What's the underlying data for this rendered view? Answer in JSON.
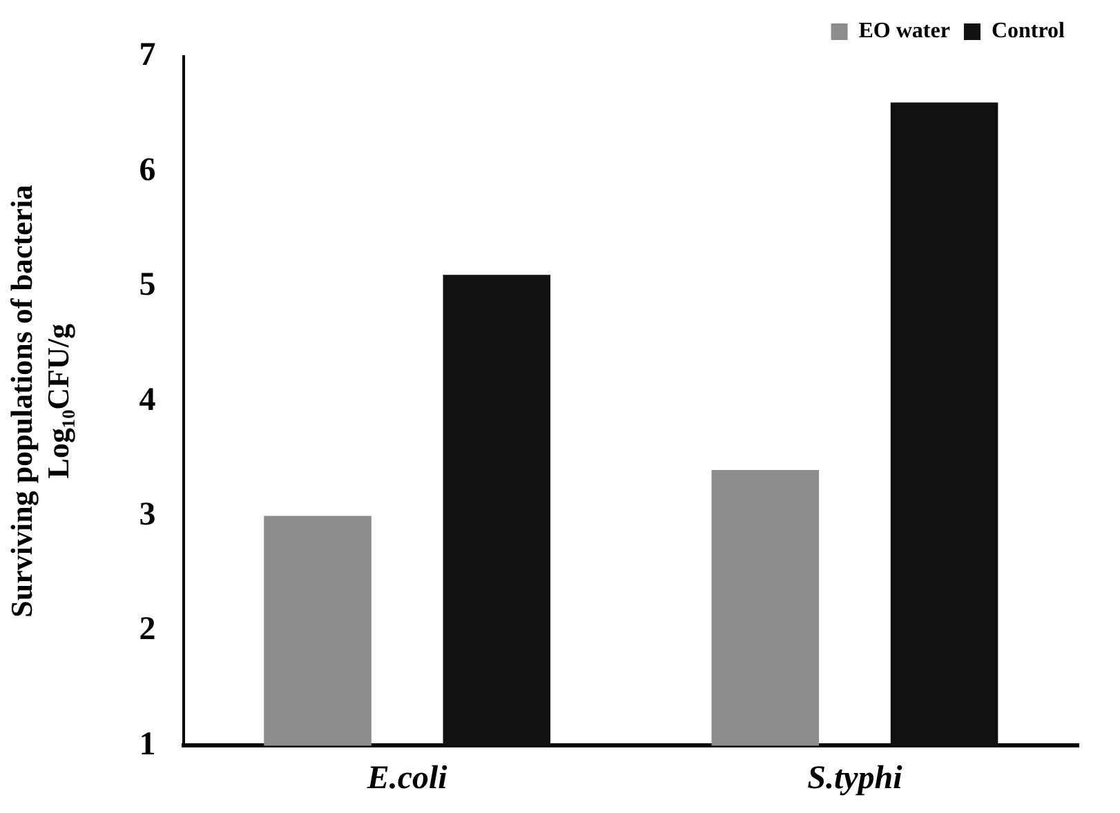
{
  "chart_data": {
    "type": "bar",
    "ylabel": "Surviving populations of bacteria\nLog₁₀CFU/g",
    "categories": [
      "E.coli",
      "S.typhi"
    ],
    "series": [
      {
        "name": "EO water",
        "color": "#8c8c8c",
        "values": [
          3.0,
          3.4
        ]
      },
      {
        "name": "Control",
        "color": "#111111",
        "values": [
          5.1,
          6.6
        ]
      }
    ],
    "ylim": [
      1,
      7
    ],
    "yticks": [
      1,
      2,
      3,
      4,
      5,
      6,
      7
    ],
    "grid": false,
    "legend": "top right"
  }
}
